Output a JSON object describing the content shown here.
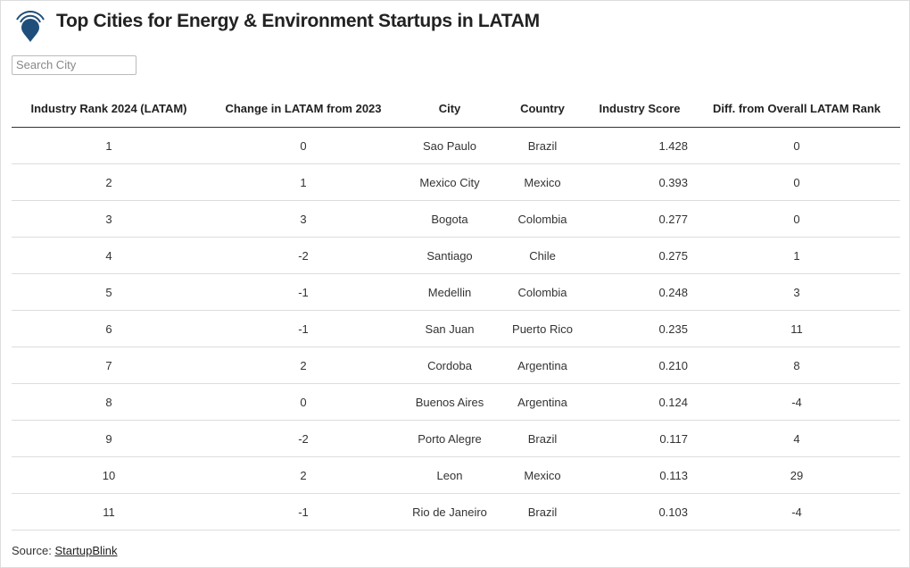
{
  "header": {
    "title": "Top Cities for Energy & Environment Startups in LATAM"
  },
  "search": {
    "placeholder": "Search City"
  },
  "table": {
    "columns": [
      "Industry Rank 2024 (LATAM)",
      "Change in LATAM from 2023",
      "City",
      "Country",
      "Industry Score",
      "Diff. from Overall LATAM Rank"
    ],
    "rows": [
      [
        "1",
        "0",
        "Sao Paulo",
        "Brazil",
        "1.428",
        "0"
      ],
      [
        "2",
        "1",
        "Mexico City",
        "Mexico",
        "0.393",
        "0"
      ],
      [
        "3",
        "3",
        "Bogota",
        "Colombia",
        "0.277",
        "0"
      ],
      [
        "4",
        "-2",
        "Santiago",
        "Chile",
        "0.275",
        "1"
      ],
      [
        "5",
        "-1",
        "Medellin",
        "Colombia",
        "0.248",
        "3"
      ],
      [
        "6",
        "-1",
        "San Juan",
        "Puerto Rico",
        "0.235",
        "11"
      ],
      [
        "7",
        "2",
        "Cordoba",
        "Argentina",
        "0.210",
        "8"
      ],
      [
        "8",
        "0",
        "Buenos Aires",
        "Argentina",
        "0.124",
        "-4"
      ],
      [
        "9",
        "-2",
        "Porto Alegre",
        "Brazil",
        "0.117",
        "4"
      ],
      [
        "10",
        "2",
        "Leon",
        "Mexico",
        "0.113",
        "29"
      ],
      [
        "11",
        "-1",
        "Rio de Janeiro",
        "Brazil",
        "0.103",
        "-4"
      ]
    ]
  },
  "footer": {
    "source_label": "Source:",
    "source_link": "StartupBlink"
  }
}
